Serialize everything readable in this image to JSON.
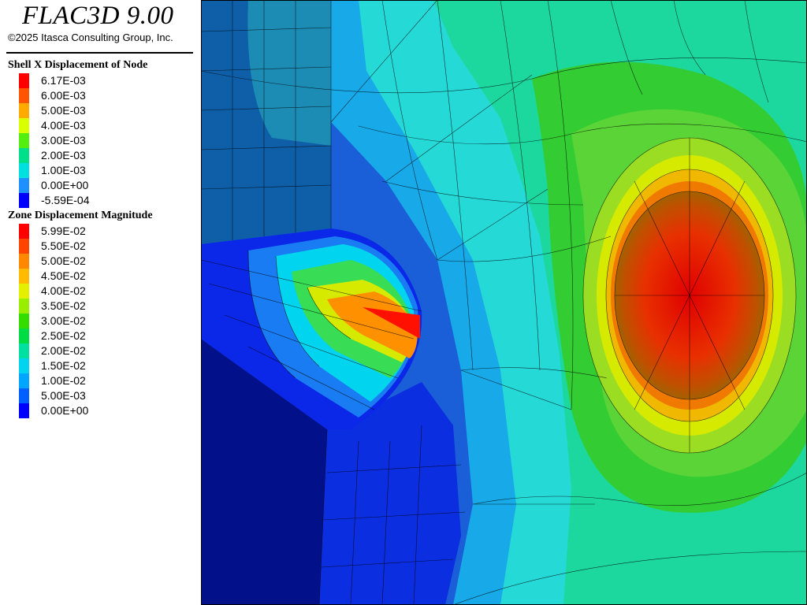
{
  "app": {
    "title": "FLAC3D 9.00",
    "copyright": "©2025 Itasca Consulting Group, Inc."
  },
  "legend": {
    "shell": {
      "title": "Shell X Displacement of Node",
      "items": [
        {
          "label": "6.17E-03",
          "color": "#ff0000"
        },
        {
          "label": "6.00E-03",
          "color": "#ff5500"
        },
        {
          "label": "5.00E-03",
          "color": "#ffaa00"
        },
        {
          "label": "4.00E-03",
          "color": "#d9ff00"
        },
        {
          "label": "3.00E-03",
          "color": "#55ee11"
        },
        {
          "label": "2.00E-03",
          "color": "#00e08a"
        },
        {
          "label": "1.00E-03",
          "color": "#00e0e0"
        },
        {
          "label": "0.00E+00",
          "color": "#1e90ff"
        },
        {
          "label": "-5.59E-04",
          "color": "#0000ff"
        }
      ]
    },
    "zone": {
      "title": "Zone Displacement Magnitude",
      "items": [
        {
          "label": "5.99E-02",
          "color": "#ff0000"
        },
        {
          "label": "5.50E-02",
          "color": "#ff4400"
        },
        {
          "label": "5.00E-02",
          "color": "#ff8800"
        },
        {
          "label": "4.50E-02",
          "color": "#ffbb00"
        },
        {
          "label": "4.00E-02",
          "color": "#e5f000"
        },
        {
          "label": "3.50E-02",
          "color": "#99ee00"
        },
        {
          "label": "3.00E-02",
          "color": "#33dd00"
        },
        {
          "label": "2.50E-02",
          "color": "#00dd44"
        },
        {
          "label": "2.00E-02",
          "color": "#00e0a0"
        },
        {
          "label": "1.50E-02",
          "color": "#00d4ee"
        },
        {
          "label": "1.00E-02",
          "color": "#00a6ff"
        },
        {
          "label": "5.00E-03",
          "color": "#0060ff"
        },
        {
          "label": "0.00E+00",
          "color": "#0000ff"
        }
      ]
    }
  }
}
